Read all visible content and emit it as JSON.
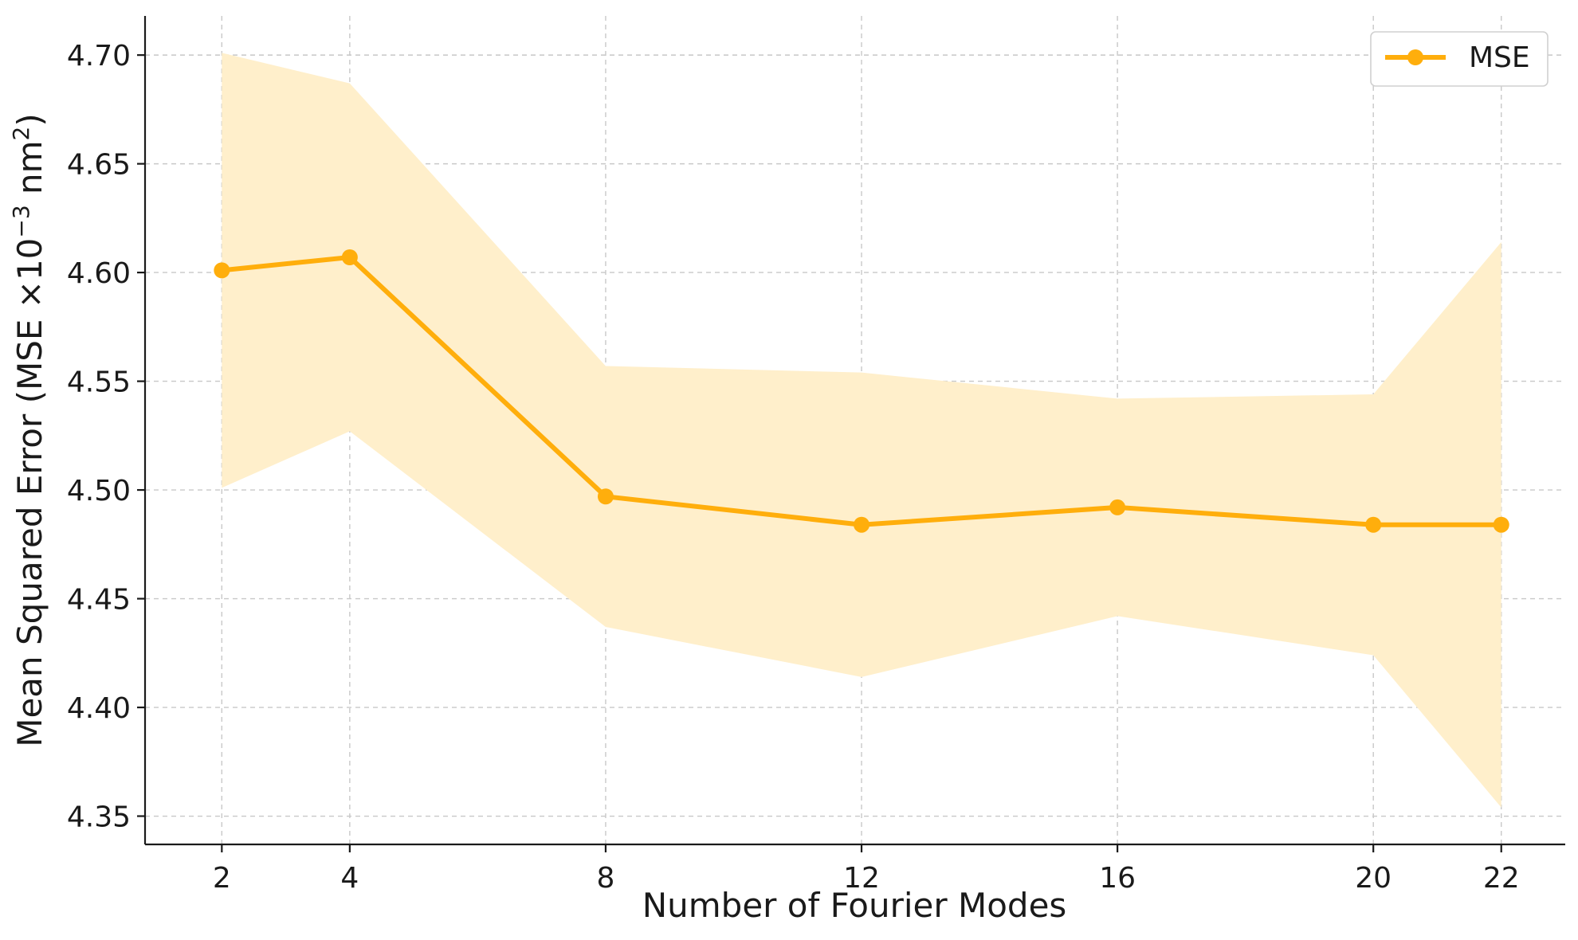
{
  "chart_data": {
    "type": "line",
    "title": "",
    "xlabel": "Number of Fourier Modes",
    "ylabel_main": "Mean Squared Error (MSE ×10",
    "ylabel_sup1": "−3",
    "ylabel_mid": " nm",
    "ylabel_sup2": "2",
    "ylabel_end": ")",
    "x": [
      2,
      4,
      8,
      12,
      16,
      20,
      22
    ],
    "xticks": [
      "2",
      "4",
      "8",
      "12",
      "16",
      "20",
      "22"
    ],
    "xlim": [
      0.8,
      23
    ],
    "yticks": [
      "4.35",
      "4.40",
      "4.45",
      "4.50",
      "4.55",
      "4.60",
      "4.65",
      "4.70"
    ],
    "ytick_values": [
      4.35,
      4.4,
      4.45,
      4.5,
      4.55,
      4.6,
      4.65,
      4.7
    ],
    "ylim": [
      4.337,
      4.718
    ],
    "grid": true,
    "legend_position": "top-right",
    "series": [
      {
        "name": "MSE",
        "values": [
          4.601,
          4.607,
          4.497,
          4.484,
          4.492,
          4.484,
          4.484
        ],
        "band_upper": [
          4.701,
          4.687,
          4.557,
          4.554,
          4.542,
          4.544,
          4.614
        ],
        "band_lower": [
          4.501,
          4.527,
          4.437,
          4.414,
          4.442,
          4.424,
          4.354
        ],
        "color": "#FFAE0C",
        "band_color": "#FFEFCB"
      }
    ]
  }
}
